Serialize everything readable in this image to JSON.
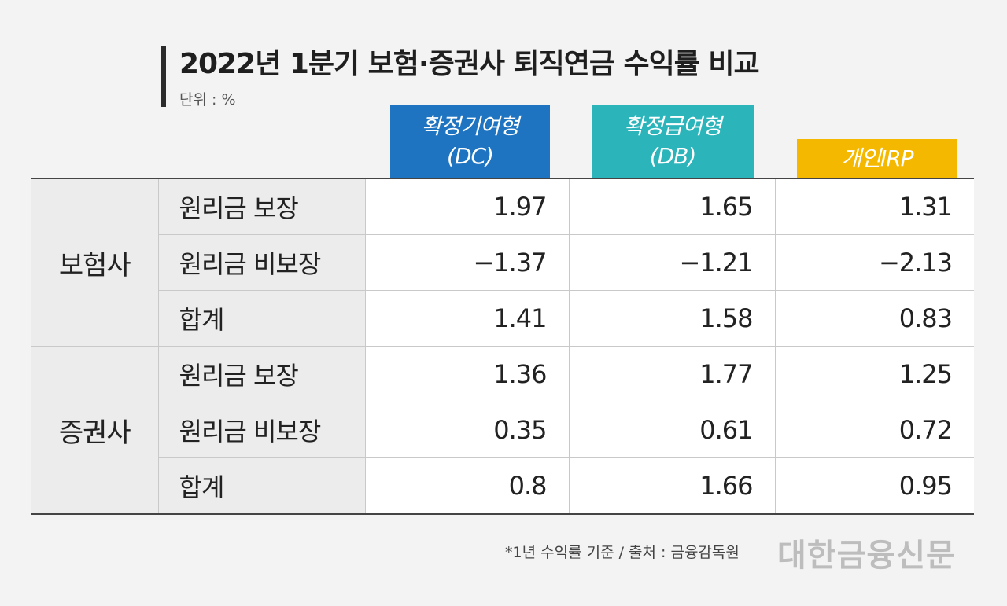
{
  "title": "2022년 1분기 보험·증권사 퇴직연금 수익률 비교",
  "unit": "단위 : %",
  "headers": [
    {
      "line1": "확정기여형",
      "line2": "(DC)",
      "color": "#1e74c0"
    },
    {
      "line1": "확정급여형",
      "line2": "(DB)",
      "color": "#2bb5bb"
    },
    {
      "line1": "개인IRP",
      "line2": "",
      "color": "#f5b800"
    }
  ],
  "groups": [
    {
      "name": "보험사",
      "rows": [
        {
          "label": "원리금 보장",
          "dc": "1.97",
          "db": "1.65",
          "irp": "1.31"
        },
        {
          "label": "원리금 비보장",
          "dc": "−1.37",
          "db": "−1.21",
          "irp": "−2.13"
        },
        {
          "label": "합계",
          "dc": "1.41",
          "db": "1.58",
          "irp": "0.83"
        }
      ]
    },
    {
      "name": "증권사",
      "rows": [
        {
          "label": "원리금 보장",
          "dc": "1.36",
          "db": "1.77",
          "irp": "1.25"
        },
        {
          "label": "원리금 비보장",
          "dc": "0.35",
          "db": "0.61",
          "irp": "0.72"
        },
        {
          "label": "합계",
          "dc": "0.8",
          "db": "1.66",
          "irp": "0.95"
        }
      ]
    }
  ],
  "source": "*1년 수익률 기준 / 출처 : 금융감독원",
  "logo": "대한금융신문",
  "chart_data": {
    "type": "table",
    "title": "2022년 1분기 보험·증권사 퇴직연금 수익률 비교",
    "columns": [
      "확정기여형(DC)",
      "확정급여형(DB)",
      "개인IRP"
    ],
    "rows": [
      {
        "group": "보험사",
        "label": "원리금 보장",
        "values": [
          1.97,
          1.65,
          1.31
        ]
      },
      {
        "group": "보험사",
        "label": "원리금 비보장",
        "values": [
          -1.37,
          -1.21,
          -2.13
        ]
      },
      {
        "group": "보험사",
        "label": "합계",
        "values": [
          1.41,
          1.58,
          0.83
        ]
      },
      {
        "group": "증권사",
        "label": "원리금 보장",
        "values": [
          1.36,
          1.77,
          1.25
        ]
      },
      {
        "group": "증권사",
        "label": "원리금 비보장",
        "values": [
          0.35,
          0.61,
          0.72
        ]
      },
      {
        "group": "증권사",
        "label": "합계",
        "values": [
          0.8,
          1.66,
          0.95
        ]
      }
    ]
  }
}
